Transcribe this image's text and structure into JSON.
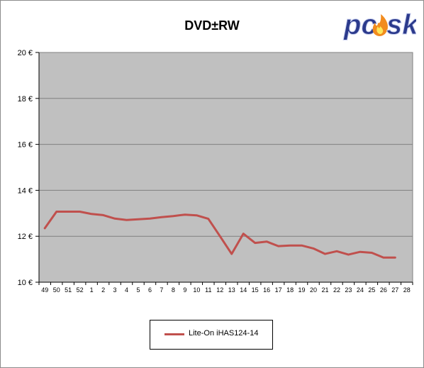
{
  "chart_data": {
    "type": "line",
    "title": "DVD±RW",
    "xlabel": "",
    "ylabel": "",
    "ylim": [
      10,
      20
    ],
    "yticks": [
      "10 €",
      "12 €",
      "14 €",
      "16 €",
      "18 €",
      "20 €"
    ],
    "ytick_values": [
      10,
      12,
      14,
      16,
      18,
      20
    ],
    "categories": [
      "49",
      "50",
      "51",
      "52",
      "1",
      "2",
      "3",
      "4",
      "5",
      "6",
      "7",
      "8",
      "9",
      "10",
      "11",
      "12",
      "13",
      "14",
      "15",
      "16",
      "17",
      "18",
      "19",
      "20",
      "21",
      "22",
      "23",
      "24",
      "25",
      "26",
      "27",
      "28"
    ],
    "grid": true,
    "legend_position": "bottom",
    "series": [
      {
        "name": "Lite-On  iHAS124-14",
        "color": "#c0504d",
        "values": [
          12.35,
          13.07,
          13.07,
          13.07,
          12.97,
          12.92,
          12.77,
          12.71,
          12.74,
          12.77,
          12.83,
          12.88,
          12.94,
          12.91,
          12.76,
          12.0,
          11.23,
          12.11,
          11.71,
          11.77,
          11.57,
          11.6,
          11.6,
          11.47,
          11.23,
          11.35,
          11.2,
          11.32,
          11.28,
          11.07,
          11.07,
          null
        ]
      }
    ]
  },
  "logo": {
    "text": "pcsk",
    "letters": [
      "p",
      "c",
      "",
      "s",
      "k"
    ],
    "color": "#2b3a8c",
    "flame_color": "#f28c1e"
  }
}
